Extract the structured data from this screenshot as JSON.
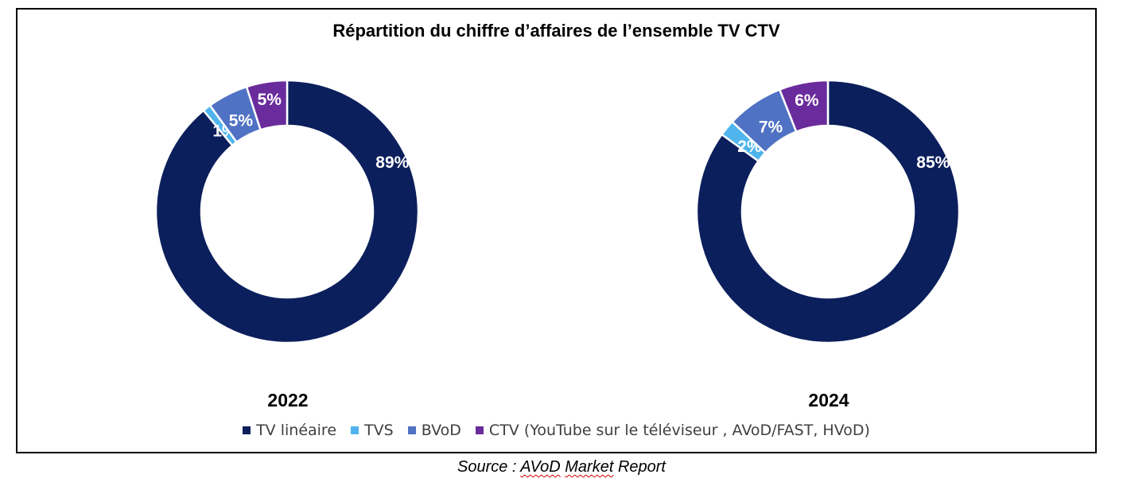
{
  "chart_data": {
    "type": "pie",
    "title": "Répartition du chiffre d’affaires de l’ensemble TV CTV",
    "legend_position": "bottom",
    "categories": [
      "TV linéaire",
      "TVS",
      "BVoD",
      "CTV (YouTube sur le téléviseur , AVoD/FAST, HVoD)"
    ],
    "colors": [
      "#0b1f5c",
      "#4fb5ec",
      "#4f72c4",
      "#6a2c9c"
    ],
    "series": [
      {
        "name": "2022",
        "values": [
          89,
          1,
          5,
          5
        ],
        "labels": [
          "89%",
          "1%",
          "5%",
          "5%"
        ]
      },
      {
        "name": "2024",
        "values": [
          85,
          2,
          7,
          6
        ],
        "labels": [
          "85%",
          "2%",
          "7%",
          "6%"
        ]
      }
    ]
  },
  "source": {
    "prefix": "Source : ",
    "word1": "AVoD",
    "space": " ",
    "word2": "Market",
    "suffix": " Report"
  }
}
